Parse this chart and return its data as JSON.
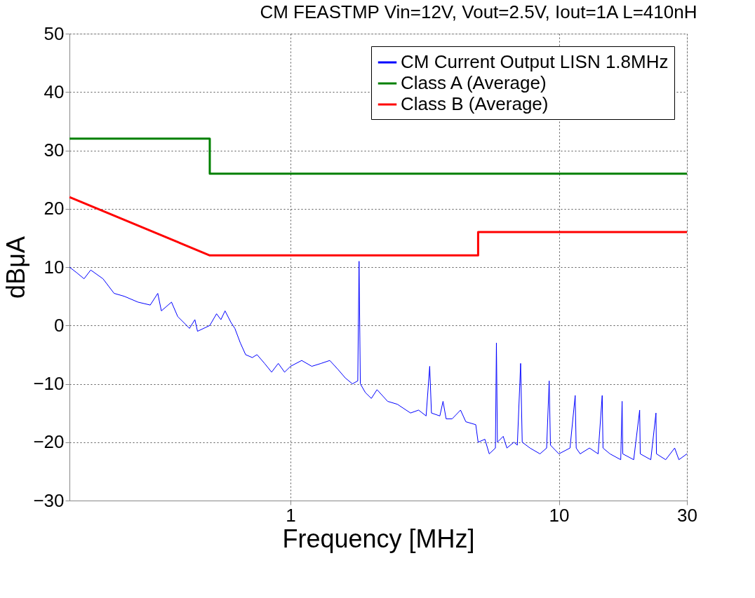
{
  "chart_data": {
    "type": "line",
    "title": "CM FEASTMP Vin=12V, Vout=2.5V, Iout=1A L=410nH",
    "xlabel": "Frequency [MHz]",
    "ylabel": "dBμA",
    "log": "x",
    "xlim": [
      0.15,
      30
    ],
    "xticks": [
      1,
      10,
      30
    ],
    "ylim": [
      -30,
      50
    ],
    "yticks": [
      -30,
      -20,
      -10,
      0,
      10,
      20,
      30,
      40,
      50
    ],
    "grid": true,
    "legend": "top right",
    "marker": "none",
    "line_style": "solid",
    "series": [
      {
        "name": "CM Current Output LISN 1.8MHz",
        "color": "#0000ff",
        "x": [
          0.15,
          0.16,
          0.17,
          0.18,
          0.2,
          0.22,
          0.24,
          0.27,
          0.3,
          0.32,
          0.33,
          0.36,
          0.38,
          0.4,
          0.42,
          0.44,
          0.45,
          0.5,
          0.53,
          0.55,
          0.57,
          0.6,
          0.62,
          0.65,
          0.68,
          0.72,
          0.75,
          0.8,
          0.85,
          0.9,
          0.95,
          1.0,
          1.1,
          1.2,
          1.3,
          1.4,
          1.5,
          1.6,
          1.7,
          1.78,
          1.8,
          1.82,
          1.9,
          2.0,
          2.1,
          2.3,
          2.5,
          2.8,
          3.0,
          3.2,
          3.3,
          3.35,
          3.6,
          3.7,
          3.8,
          4.0,
          4.3,
          4.5,
          4.9,
          5.0,
          5.3,
          5.5,
          5.8,
          5.85,
          5.9,
          6.2,
          6.4,
          6.8,
          7.0,
          7.2,
          7.3,
          7.8,
          8.5,
          9.0,
          9.2,
          9.3,
          10,
          11,
          11.5,
          11.6,
          12,
          13,
          14,
          14.5,
          14.6,
          15.5,
          17,
          17.2,
          17.3,
          19,
          20,
          20.1,
          22,
          23,
          23.1,
          25,
          27,
          28,
          30
        ],
        "values": [
          10,
          9,
          8,
          9.5,
          8,
          5.5,
          5,
          4,
          3.5,
          5.5,
          2.5,
          4,
          1.5,
          0.5,
          -0.5,
          1,
          -1,
          0,
          2,
          1,
          2.5,
          0.5,
          -0.5,
          -3,
          -5,
          -5.5,
          -5,
          -6.5,
          -8,
          -6.5,
          -8,
          -7,
          -6,
          -7,
          -6.5,
          -6,
          -7.5,
          -9,
          -10,
          -9.5,
          11,
          -10,
          -11.5,
          -12.5,
          -11,
          -13,
          -13.5,
          -15,
          -14.5,
          -15.5,
          -7,
          -15,
          -15.5,
          -13,
          -16,
          -16,
          -14.5,
          -16.5,
          -17,
          -20,
          -19.5,
          -22,
          -21,
          -3,
          -20,
          -19,
          -21,
          -20,
          -20.5,
          -6.5,
          -20,
          -21,
          -22,
          -21,
          -9.5,
          -20.5,
          -22,
          -21,
          -12,
          -21,
          -22,
          -21,
          -22,
          -12,
          -21,
          -22,
          -23,
          -13,
          -22,
          -23,
          -14.5,
          -22,
          -23,
          -15,
          -22,
          -23,
          -21,
          -23,
          -22
        ]
      },
      {
        "name": "Class A (Average)",
        "color": "#008000",
        "x": [
          0.15,
          0.5,
          0.5,
          30
        ],
        "values": [
          32,
          32,
          26,
          26
        ]
      },
      {
        "name": "Class B (Average)",
        "color": "#ff0000",
        "x": [
          0.15,
          0.5,
          5,
          5,
          30
        ],
        "values": [
          22,
          12,
          12,
          16,
          16
        ]
      }
    ]
  }
}
